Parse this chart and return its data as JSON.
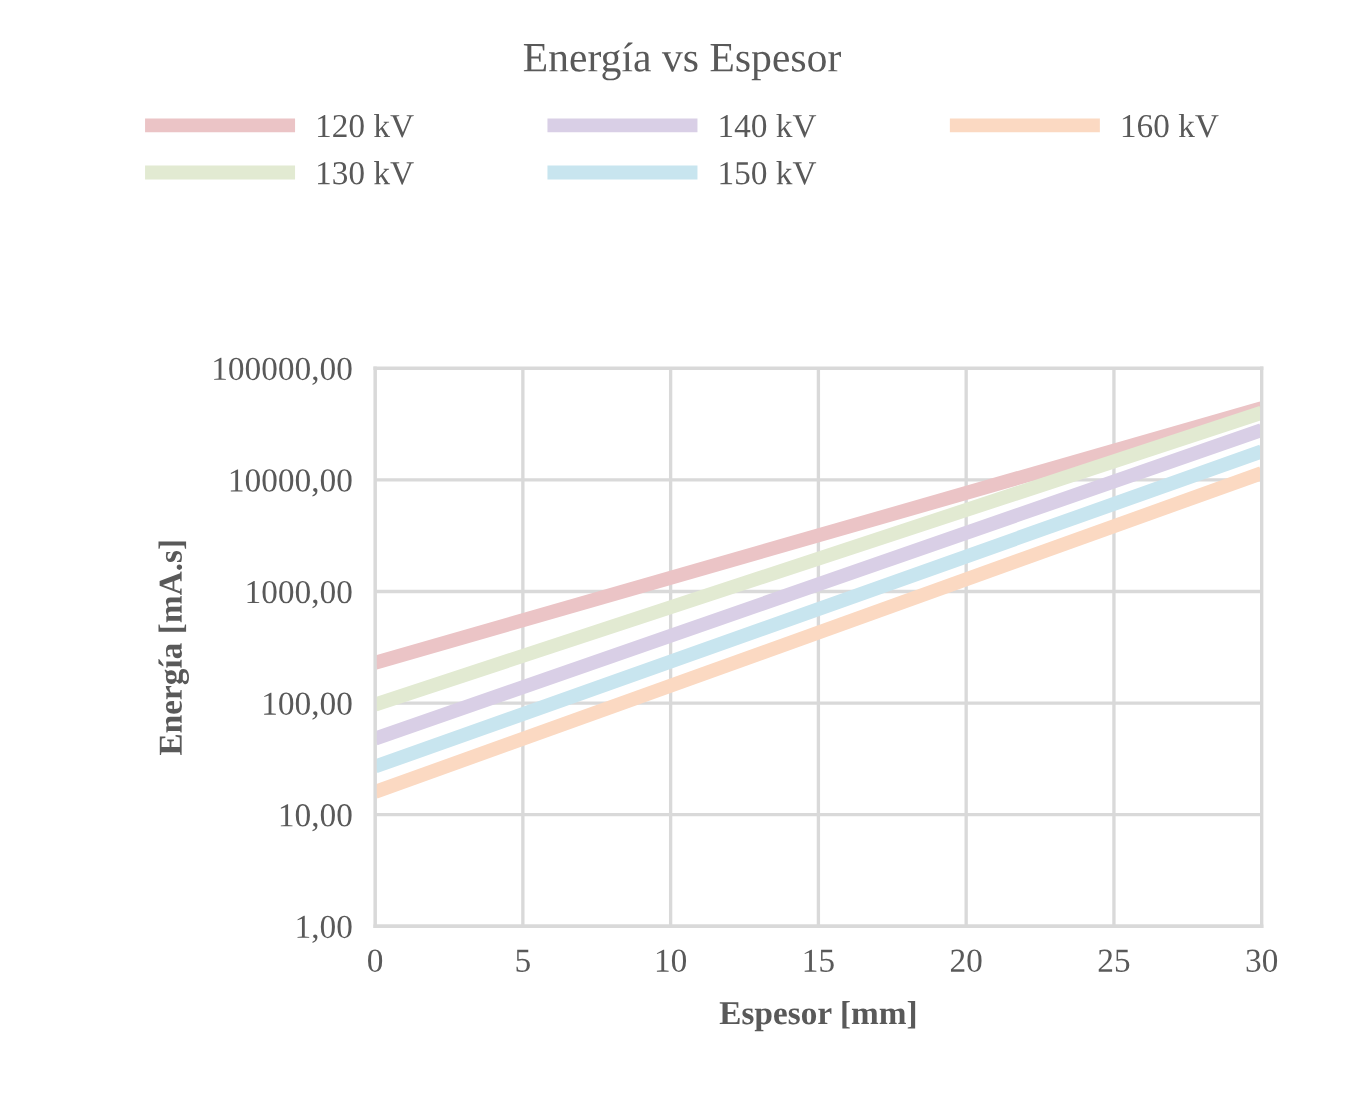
{
  "chart_data": {
    "type": "line",
    "title": "Energía vs Espesor",
    "xlabel": "Espesor [mm]",
    "ylabel": "Energía [mA.s]",
    "x": [
      0,
      30
    ],
    "series": [
      {
        "name": "120 kV",
        "color": "#ebc4c6",
        "values": [
          230,
          44000
        ]
      },
      {
        "name": "130 kV",
        "color": "#e2ead2",
        "values": [
          97,
          40000
        ]
      },
      {
        "name": "140 kV",
        "color": "#d9cfe6",
        "values": [
          48,
          28000
        ]
      },
      {
        "name": "150 kV",
        "color": "#c8e5ef",
        "values": [
          27,
          18000
        ]
      },
      {
        "name": "160 kV",
        "color": "#fbd9c2",
        "values": [
          16,
          11500
        ]
      }
    ],
    "log": "y",
    "xlim": [
      0,
      30
    ],
    "xticks": [
      0,
      5,
      10,
      15,
      20,
      25,
      30
    ],
    "ylim": [
      1,
      100000
    ],
    "yticks": [
      {
        "value": 1,
        "label": "1,00"
      },
      {
        "value": 10,
        "label": "10,00"
      },
      {
        "value": 100,
        "label": "100,00"
      },
      {
        "value": 1000,
        "label": "1000,00"
      },
      {
        "value": 10000,
        "label": "10000,00"
      },
      {
        "value": 100000,
        "label": "100000,00"
      }
    ],
    "grid": true,
    "legend": "top",
    "marker": "none",
    "line_style": "solid"
  }
}
